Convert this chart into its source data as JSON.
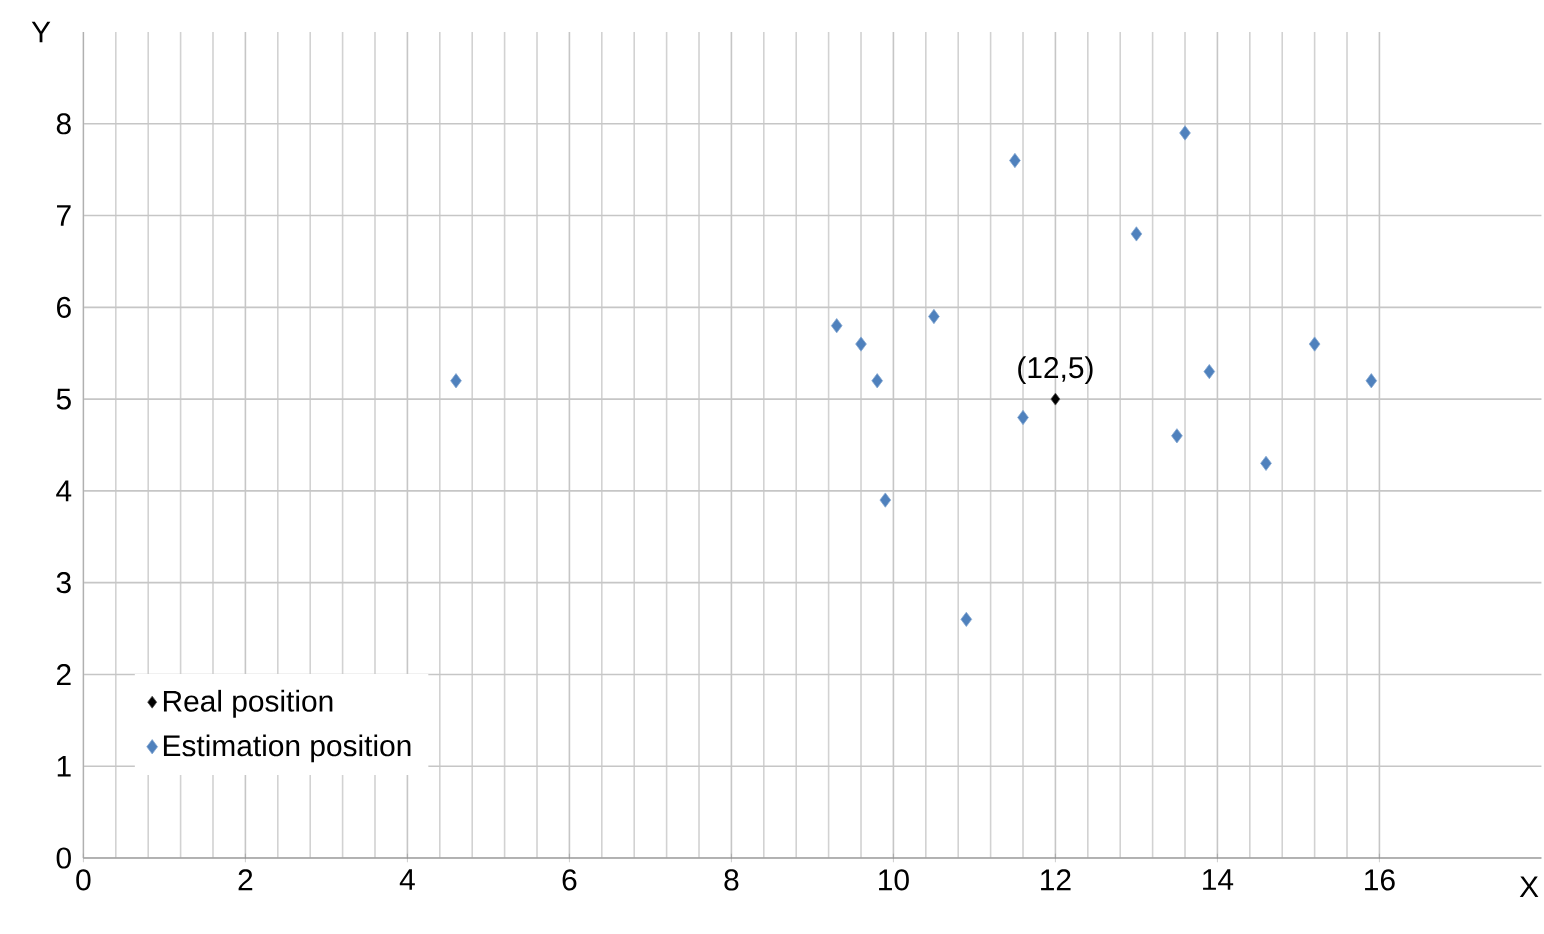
{
  "chart_data": {
    "type": "scatter",
    "xlabel": "X",
    "ylabel": "Y",
    "xlim": [
      0,
      18
    ],
    "ylim": [
      0,
      9
    ],
    "xticks": [
      0,
      2,
      4,
      6,
      8,
      10,
      12,
      14,
      16
    ],
    "yticks": [
      0,
      1,
      2,
      3,
      4,
      5,
      6,
      7,
      8
    ],
    "grid": true,
    "legend": "bottom left",
    "marker": "diamond",
    "annotations": [
      {
        "text": "(12,5)",
        "x": 12,
        "y": 5
      }
    ],
    "series": [
      {
        "name": "Real position",
        "color": "#000000",
        "x": [
          12
        ],
        "values": [
          5
        ]
      },
      {
        "name": "Estimation position",
        "color": "#4f81bd",
        "x": [
          9.3,
          9.6,
          9.8,
          9.9,
          10.5,
          10.9,
          11.5,
          11.6,
          13,
          13.6,
          13.5,
          13.9,
          14.6,
          15.2,
          15.9,
          4.6
        ],
        "values": [
          5.8,
          5.6,
          5.2,
          3.9,
          5.9,
          2.6,
          7.6,
          4.8,
          6.8,
          7.9,
          4.6,
          5.3,
          4.3,
          5.6,
          5.2,
          5.2
        ]
      }
    ]
  }
}
